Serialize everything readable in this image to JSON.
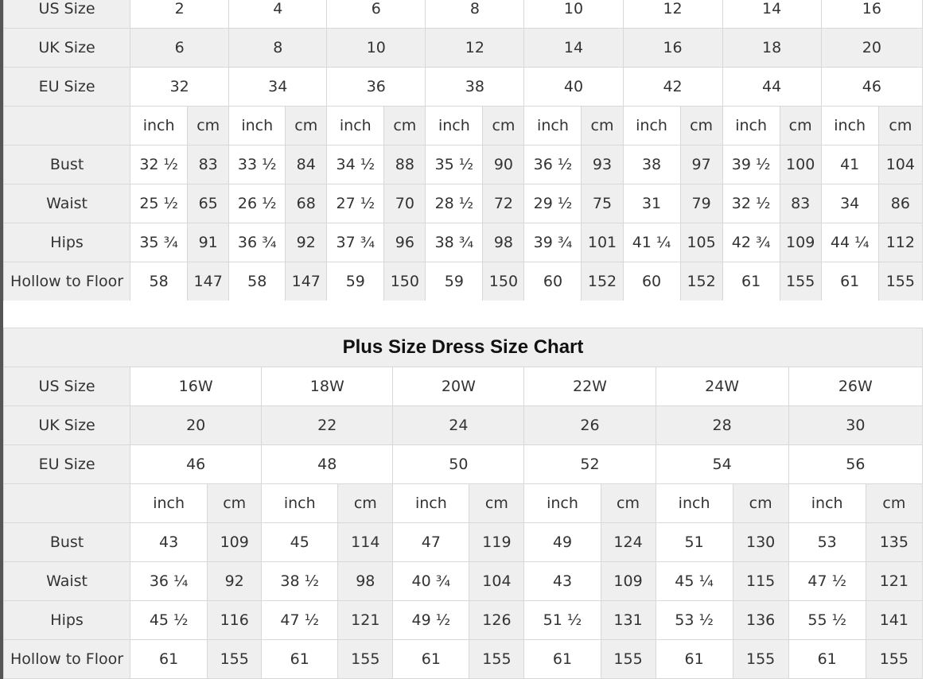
{
  "standard_chart": {
    "size_rows": [
      {
        "label": "US Size",
        "values": [
          "2",
          "4",
          "6",
          "8",
          "10",
          "12",
          "14",
          "16"
        ]
      },
      {
        "label": "UK Size",
        "values": [
          "6",
          "8",
          "10",
          "12",
          "14",
          "16",
          "18",
          "20"
        ]
      },
      {
        "label": "EU Size",
        "values": [
          "32",
          "34",
          "36",
          "38",
          "40",
          "42",
          "44",
          "46"
        ]
      }
    ],
    "unit_labels": [
      "inch",
      "cm"
    ],
    "measure_rows": [
      {
        "label": "Bust",
        "values": [
          [
            "32 ½",
            "83"
          ],
          [
            "33 ½",
            "84"
          ],
          [
            "34 ½",
            "88"
          ],
          [
            "35 ½",
            "90"
          ],
          [
            "36 ½",
            "93"
          ],
          [
            "38",
            "97"
          ],
          [
            "39 ½",
            "100"
          ],
          [
            "41",
            "104"
          ]
        ]
      },
      {
        "label": "Waist",
        "values": [
          [
            "25 ½",
            "65"
          ],
          [
            "26 ½",
            "68"
          ],
          [
            "27 ½",
            "70"
          ],
          [
            "28 ½",
            "72"
          ],
          [
            "29 ½",
            "75"
          ],
          [
            "31",
            "79"
          ],
          [
            "32 ½",
            "83"
          ],
          [
            "34",
            "86"
          ]
        ]
      },
      {
        "label": "Hips",
        "values": [
          [
            "35 ¾",
            "91"
          ],
          [
            "36 ¾",
            "92"
          ],
          [
            "37 ¾",
            "96"
          ],
          [
            "38 ¾",
            "98"
          ],
          [
            "39 ¾",
            "101"
          ],
          [
            "41 ¼",
            "105"
          ],
          [
            "42 ¾",
            "109"
          ],
          [
            "44 ¼",
            "112"
          ]
        ]
      },
      {
        "label": "Hollow to Floor",
        "values": [
          [
            "58",
            "147"
          ],
          [
            "58",
            "147"
          ],
          [
            "59",
            "150"
          ],
          [
            "59",
            "150"
          ],
          [
            "60",
            "152"
          ],
          [
            "60",
            "152"
          ],
          [
            "61",
            "155"
          ],
          [
            "61",
            "155"
          ]
        ]
      }
    ]
  },
  "plus_chart": {
    "title": "Plus Size Dress Size Chart",
    "size_rows": [
      {
        "label": "US Size",
        "values": [
          "16W",
          "18W",
          "20W",
          "22W",
          "24W",
          "26W"
        ]
      },
      {
        "label": "UK Size",
        "values": [
          "20",
          "22",
          "24",
          "26",
          "28",
          "30"
        ]
      },
      {
        "label": "EU Size",
        "values": [
          "46",
          "48",
          "50",
          "52",
          "54",
          "56"
        ]
      }
    ],
    "unit_labels": [
      "inch",
      "cm"
    ],
    "measure_rows": [
      {
        "label": "Bust",
        "values": [
          [
            "43",
            "109"
          ],
          [
            "45",
            "114"
          ],
          [
            "47",
            "119"
          ],
          [
            "49",
            "124"
          ],
          [
            "51",
            "130"
          ],
          [
            "53",
            "135"
          ]
        ]
      },
      {
        "label": "Waist",
        "values": [
          [
            "36 ¼",
            "92"
          ],
          [
            "38 ½",
            "98"
          ],
          [
            "40 ¾",
            "104"
          ],
          [
            "43",
            "109"
          ],
          [
            "45 ¼",
            "115"
          ],
          [
            "47 ½",
            "121"
          ]
        ]
      },
      {
        "label": "Hips",
        "values": [
          [
            "45 ½",
            "116"
          ],
          [
            "47 ½",
            "121"
          ],
          [
            "49 ½",
            "126"
          ],
          [
            "51 ½",
            "131"
          ],
          [
            "53 ½",
            "136"
          ],
          [
            "55 ½",
            "141"
          ]
        ]
      },
      {
        "label": "Hollow to Floor",
        "values": [
          [
            "61",
            "155"
          ],
          [
            "61",
            "155"
          ],
          [
            "61",
            "155"
          ],
          [
            "61",
            "155"
          ],
          [
            "61",
            "155"
          ],
          [
            "61",
            "155"
          ]
        ]
      }
    ]
  }
}
